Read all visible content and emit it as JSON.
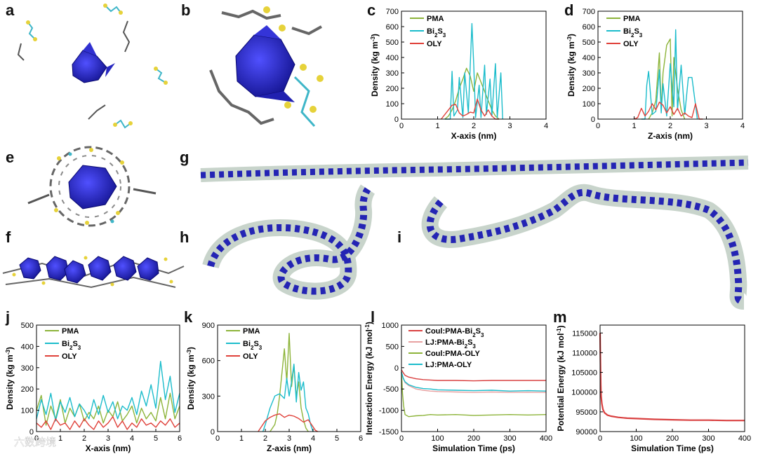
{
  "panel_labels": [
    "a",
    "b",
    "c",
    "d",
    "e",
    "f",
    "g",
    "h",
    "i",
    "j",
    "k",
    "l",
    "m"
  ],
  "colors": {
    "PMA": "#8db43a",
    "Bi2S3": "#1bbccb",
    "OLY": "#e0413a",
    "Coul_PMA_Bi2S3": "#d94040",
    "LJ_PMA_Bi2S3": "#e8a0a0",
    "Coul_PMA_OLY": "#8db43a",
    "LJ_PMA_OLY": "#1bbccb",
    "potential": "#d94040",
    "cluster": "#1a1aa8",
    "ligand": "#555555",
    "sulfur": "#e6d23a",
    "bismuth": "#3fb6c8"
  },
  "watermark": "六数跨境",
  "chart_data": [
    {
      "id": "c",
      "type": "line",
      "xlabel": "X-axis (nm)",
      "ylabel": "Density (kg m-3)",
      "xlim": [
        0,
        4
      ],
      "ylim": [
        0,
        700
      ],
      "xticks": [
        "0",
        "1",
        "2",
        "3",
        "4"
      ],
      "yticks": [
        "0",
        "100",
        "200",
        "300",
        "400",
        "500",
        "600",
        "700"
      ],
      "legend": [
        "PMA",
        "Bi2S3",
        "OLY"
      ],
      "legend_position": "top-right",
      "series": [
        {
          "name": "PMA",
          "x": [
            1.2,
            1.3,
            1.4,
            1.5,
            1.6,
            1.7,
            1.8,
            1.9,
            2.0,
            2.1,
            2.2,
            2.3,
            2.4,
            2.5,
            2.6,
            2.7
          ],
          "y": [
            0,
            20,
            60,
            120,
            200,
            260,
            330,
            280,
            180,
            300,
            240,
            180,
            120,
            60,
            20,
            0
          ]
        },
        {
          "name": "Bi2S3",
          "x": [
            1.2,
            1.35,
            1.4,
            1.45,
            1.55,
            1.6,
            1.7,
            1.75,
            1.85,
            1.95,
            2.0,
            2.05,
            2.15,
            2.2,
            2.3,
            2.35,
            2.45,
            2.5,
            2.6,
            2.65,
            2.75,
            2.8
          ],
          "y": [
            0,
            0,
            310,
            20,
            60,
            270,
            10,
            300,
            40,
            620,
            350,
            10,
            220,
            10,
            350,
            30,
            260,
            20,
            360,
            10,
            300,
            0
          ]
        },
        {
          "name": "OLY",
          "x": [
            1.1,
            1.2,
            1.3,
            1.4,
            1.5,
            1.6,
            1.7,
            1.8,
            1.9,
            2.0,
            2.1,
            2.2,
            2.3,
            2.4,
            2.5,
            2.6,
            2.7
          ],
          "y": [
            0,
            30,
            60,
            90,
            95,
            40,
            20,
            30,
            45,
            40,
            130,
            60,
            20,
            60,
            20,
            0,
            0
          ]
        }
      ]
    },
    {
      "id": "d",
      "type": "line",
      "xlabel": "Z-axis (nm)",
      "ylabel": "Density (kg m-3)",
      "xlim": [
        0,
        4
      ],
      "ylim": [
        0,
        700
      ],
      "xticks": [
        "0",
        "1",
        "2",
        "3",
        "4"
      ],
      "yticks": [
        "0",
        "100",
        "200",
        "300",
        "400",
        "500",
        "600",
        "700"
      ],
      "legend": [
        "PMA",
        "Bi2S3",
        "OLY"
      ],
      "legend_position": "top-right",
      "series": [
        {
          "name": "PMA",
          "x": [
            1.4,
            1.5,
            1.6,
            1.7,
            1.75,
            1.8,
            1.9,
            2.0,
            2.05,
            2.1,
            2.2,
            2.3,
            2.4
          ],
          "y": [
            0,
            40,
            120,
            430,
            60,
            300,
            480,
            520,
            20,
            400,
            200,
            60,
            0
          ]
        },
        {
          "name": "Bi2S3",
          "x": [
            1.2,
            1.3,
            1.35,
            1.4,
            1.5,
            1.6,
            1.7,
            1.75,
            1.8,
            1.9,
            2.0,
            2.1,
            2.15,
            2.2,
            2.3,
            2.4,
            2.5,
            2.6,
            2.7,
            2.75
          ],
          "y": [
            0,
            0,
            220,
            310,
            30,
            50,
            320,
            40,
            230,
            20,
            360,
            80,
            580,
            60,
            350,
            30,
            270,
            270,
            90,
            0
          ]
        },
        {
          "name": "OLY",
          "x": [
            1.0,
            1.1,
            1.2,
            1.3,
            1.4,
            1.5,
            1.6,
            1.7,
            1.8,
            1.9,
            2.0,
            2.1,
            2.2,
            2.3,
            2.4,
            2.5,
            2.6,
            2.7,
            2.8,
            2.9
          ],
          "y": [
            0,
            10,
            70,
            20,
            50,
            100,
            60,
            110,
            90,
            40,
            80,
            30,
            70,
            20,
            40,
            20,
            10,
            100,
            0,
            0
          ]
        }
      ]
    },
    {
      "id": "j",
      "type": "line",
      "xlabel": "X-axis (nm)",
      "ylabel": "Density (kg m-3)",
      "xlim": [
        0,
        6
      ],
      "ylim": [
        0,
        500
      ],
      "xticks": [
        "0",
        "1",
        "2",
        "3",
        "4",
        "5",
        "6"
      ],
      "yticks": [
        "0",
        "100",
        "200",
        "300",
        "400",
        "500"
      ],
      "legend": [
        "PMA",
        "Bi2S3",
        "OLY"
      ],
      "legend_position": "top-left",
      "series": [
        {
          "name": "PMA",
          "x": [
            0,
            0.2,
            0.4,
            0.6,
            0.8,
            1.0,
            1.2,
            1.4,
            1.6,
            1.8,
            2.0,
            2.2,
            2.4,
            2.6,
            2.8,
            3.0,
            3.2,
            3.4,
            3.6,
            3.8,
            4.0,
            4.2,
            4.4,
            4.6,
            4.8,
            5.0,
            5.2,
            5.4,
            5.6,
            5.8,
            6.0
          ],
          "y": [
            100,
            170,
            30,
            120,
            60,
            150,
            40,
            110,
            70,
            130,
            50,
            90,
            60,
            120,
            40,
            100,
            70,
            140,
            50,
            80,
            120,
            40,
            110,
            60,
            90,
            50,
            160,
            60,
            180,
            60,
            120
          ]
        },
        {
          "name": "Bi2S3",
          "x": [
            0,
            0.2,
            0.4,
            0.6,
            0.8,
            1.0,
            1.2,
            1.4,
            1.6,
            1.8,
            2.0,
            2.2,
            2.4,
            2.6,
            2.8,
            3.0,
            3.2,
            3.4,
            3.6,
            3.8,
            4.0,
            4.2,
            4.4,
            4.6,
            4.8,
            5.0,
            5.2,
            5.4,
            5.6,
            5.8,
            6.0
          ],
          "y": [
            60,
            150,
            80,
            180,
            50,
            140,
            90,
            160,
            70,
            130,
            100,
            60,
            150,
            80,
            170,
            90,
            140,
            60,
            120,
            100,
            160,
            80,
            190,
            120,
            220,
            110,
            330,
            150,
            260,
            90,
            180
          ]
        },
        {
          "name": "OLY",
          "x": [
            0,
            0.2,
            0.4,
            0.6,
            0.8,
            1.0,
            1.2,
            1.4,
            1.6,
            1.8,
            2.0,
            2.2,
            2.4,
            2.6,
            2.8,
            3.0,
            3.2,
            3.4,
            3.6,
            3.8,
            4.0,
            4.2,
            4.4,
            4.6,
            4.8,
            5.0,
            5.2,
            5.4,
            5.6,
            5.8,
            6.0
          ],
          "y": [
            40,
            20,
            50,
            10,
            60,
            30,
            40,
            10,
            50,
            20,
            60,
            30,
            10,
            50,
            20,
            40,
            70,
            20,
            50,
            10,
            40,
            20,
            60,
            30,
            40,
            20,
            50,
            30,
            60,
            20,
            40
          ]
        }
      ]
    },
    {
      "id": "k",
      "type": "line",
      "xlabel": "Z-axis (nm)",
      "ylabel": "Density (kg m-3)",
      "xlim": [
        0,
        6
      ],
      "ylim": [
        0,
        900
      ],
      "xticks": [
        "0",
        "1",
        "2",
        "3",
        "4",
        "5",
        "6"
      ],
      "yticks": [
        "0",
        "300",
        "600",
        "900"
      ],
      "legend": [
        "PMA",
        "Bi2S3",
        "OLY"
      ],
      "legend_position": "top-left",
      "series": [
        {
          "name": "PMA",
          "x": [
            2.2,
            2.4,
            2.5,
            2.6,
            2.7,
            2.8,
            2.9,
            3.0,
            3.1,
            3.2,
            3.3,
            3.4,
            3.5,
            3.6,
            3.7,
            3.8
          ],
          "y": [
            0,
            60,
            150,
            300,
            500,
            700,
            420,
            830,
            380,
            560,
            300,
            420,
            200,
            100,
            30,
            0
          ]
        },
        {
          "name": "Bi2S3",
          "x": [
            1.9,
            2.0,
            2.2,
            2.4,
            2.6,
            2.8,
            2.9,
            3.0,
            3.1,
            3.2,
            3.3,
            3.4,
            3.5,
            3.6,
            3.7,
            3.8,
            3.9,
            4.0
          ],
          "y": [
            0,
            60,
            200,
            300,
            320,
            280,
            450,
            300,
            420,
            570,
            250,
            500,
            350,
            420,
            200,
            150,
            60,
            0
          ]
        },
        {
          "name": "OLY",
          "x": [
            1.7,
            1.8,
            2.0,
            2.2,
            2.4,
            2.6,
            2.8,
            3.0,
            3.2,
            3.4,
            3.6,
            3.8,
            4.0,
            4.1,
            4.2
          ],
          "y": [
            0,
            30,
            90,
            120,
            140,
            150,
            120,
            140,
            130,
            110,
            80,
            100,
            40,
            10,
            0
          ]
        }
      ]
    },
    {
      "id": "l",
      "type": "line",
      "xlabel": "Simulation Time (ps)",
      "ylabel": "Interaction Energy (kJ mol-1)",
      "xlim": [
        0,
        400
      ],
      "ylim": [
        -1500,
        1000
      ],
      "xticks": [
        "0",
        "100",
        "200",
        "300",
        "400"
      ],
      "yticks": [
        "1000",
        "500",
        "0",
        "-500",
        "-1000",
        "-1500"
      ],
      "legend": [
        "Coul:PMA-Bi2S3",
        "LJ:PMA-Bi2S3",
        "Coul:PMA-OLY",
        "LJ:PMA-OLY"
      ],
      "legend_position": "top-right",
      "series": [
        {
          "name": "Coul:PMA-Bi2S3",
          "x": [
            0,
            5,
            10,
            20,
            40,
            60,
            80,
            100,
            150,
            200,
            250,
            300,
            350,
            400
          ],
          "y": [
            -50,
            -120,
            -180,
            -220,
            -260,
            -280,
            -290,
            -300,
            -300,
            -310,
            -300,
            -300,
            -300,
            -300
          ]
        },
        {
          "name": "LJ:PMA-Bi2S3",
          "x": [
            0,
            5,
            10,
            20,
            40,
            60,
            80,
            100,
            150,
            200,
            250,
            300,
            350,
            400
          ],
          "y": [
            -100,
            -250,
            -350,
            -420,
            -500,
            -530,
            -550,
            -560,
            -570,
            -580,
            -570,
            -580,
            -575,
            -580
          ]
        },
        {
          "name": "Coul:PMA-OLY",
          "x": [
            0,
            3,
            6,
            10,
            20,
            40,
            60,
            80,
            100,
            150,
            200,
            250,
            300,
            350,
            400
          ],
          "y": [
            -100,
            -600,
            -900,
            -1100,
            -1150,
            -1130,
            -1120,
            -1100,
            -1110,
            -1100,
            -1120,
            -1110,
            -1100,
            -1110,
            -1100
          ]
        },
        {
          "name": "LJ:PMA-OLY",
          "x": [
            0,
            5,
            10,
            20,
            40,
            60,
            80,
            100,
            150,
            200,
            250,
            300,
            350,
            400
          ],
          "y": [
            -100,
            -250,
            -330,
            -400,
            -460,
            -490,
            -500,
            -520,
            -530,
            -540,
            -530,
            -550,
            -540,
            -550
          ]
        }
      ]
    },
    {
      "id": "m",
      "type": "line",
      "xlabel": "Simulation Time (ps)",
      "ylabel": "Potential Energy (kJ mol-1)",
      "xlim": [
        0,
        400
      ],
      "ylim": [
        90000,
        117000
      ],
      "xticks": [
        "0",
        "100",
        "200",
        "300",
        "400"
      ],
      "yticks": [
        "90000",
        "95000",
        "100000",
        "105000",
        "110000",
        "115000"
      ],
      "legend": [],
      "legend_position": "none",
      "series": [
        {
          "name": "Potential Energy",
          "x": [
            0,
            1,
            2,
            3,
            5,
            8,
            12,
            20,
            30,
            50,
            75,
            100,
            150,
            200,
            250,
            300,
            350,
            400
          ],
          "y": [
            115000,
            108000,
            102000,
            99000,
            97000,
            95600,
            94800,
            94200,
            93900,
            93600,
            93400,
            93300,
            93100,
            93000,
            92900,
            92900,
            92800,
            92800
          ]
        }
      ]
    }
  ]
}
